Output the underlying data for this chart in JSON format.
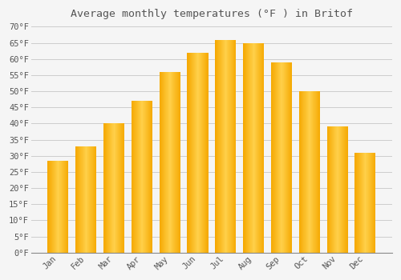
{
  "title": "Average monthly temperatures (°F ) in Britof",
  "months": [
    "Jan",
    "Feb",
    "Mar",
    "Apr",
    "May",
    "Jun",
    "Jul",
    "Aug",
    "Sep",
    "Oct",
    "Nov",
    "Dec"
  ],
  "values": [
    28.5,
    33.0,
    40.0,
    47.0,
    56.0,
    62.0,
    66.0,
    65.0,
    59.0,
    50.0,
    39.0,
    31.0
  ],
  "bar_color_center": "#FFD04A",
  "bar_color_edge": "#F5A800",
  "background_color": "#F5F5F5",
  "grid_color": "#CCCCCC",
  "text_color": "#555555",
  "ytick_min": 0,
  "ytick_max": 70,
  "ytick_step": 5,
  "title_fontsize": 9.5,
  "tick_fontsize": 7.5,
  "font_family": "monospace"
}
